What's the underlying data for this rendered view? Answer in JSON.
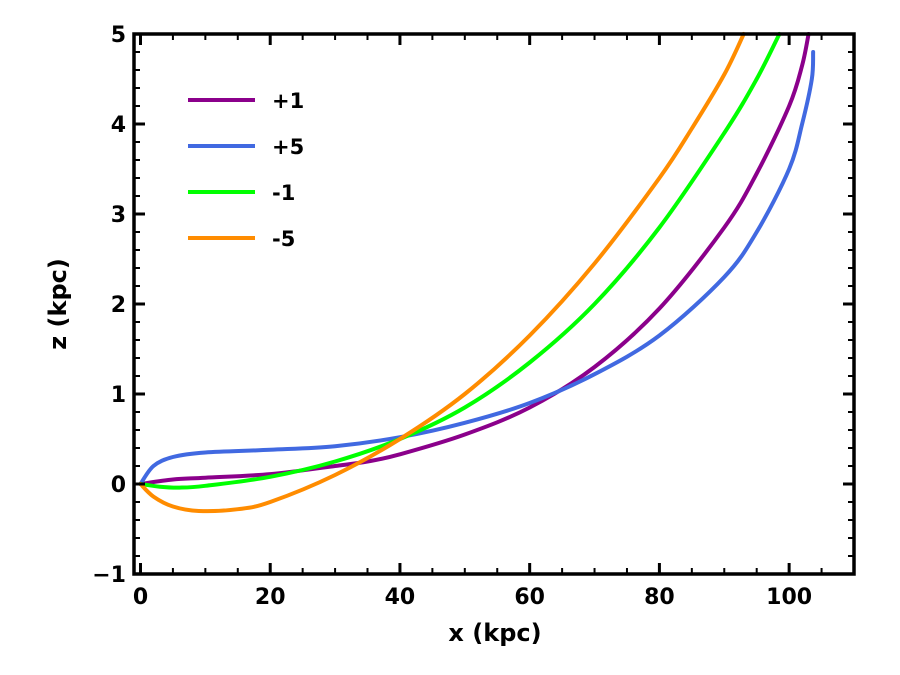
{
  "chart_data": {
    "type": "line",
    "title": "",
    "xlabel": "x (kpc)",
    "ylabel": "z (kpc)",
    "xlim": [
      -1,
      110
    ],
    "ylim": [
      -1,
      5
    ],
    "xticks": [
      0,
      20,
      40,
      60,
      80,
      100
    ],
    "xtick_labels": [
      "0",
      "20",
      "40",
      "60",
      "80",
      "100"
    ],
    "yticks": [
      -1,
      0,
      1,
      2,
      3,
      4,
      5
    ],
    "ytick_labels": [
      "−1",
      "0",
      "1",
      "2",
      "3",
      "4",
      "5"
    ],
    "x_minor_step": 5,
    "y_minor_step": 0.2,
    "grid": false,
    "legend_position": "top-left",
    "series": [
      {
        "name": "+1",
        "color": "#8B008B",
        "x": [
          0,
          5,
          10,
          20,
          30,
          35,
          40,
          50,
          60,
          70,
          80,
          90,
          95,
          100,
          102,
          103
        ],
        "y": [
          0,
          0.05,
          0.07,
          0.11,
          0.2,
          0.25,
          0.33,
          0.55,
          0.85,
          1.3,
          1.95,
          2.85,
          3.45,
          4.2,
          4.65,
          5.0
        ]
      },
      {
        "name": "+5",
        "color": "#4169E1",
        "x": [
          0,
          2,
          5,
          10,
          20,
          30,
          40,
          50,
          60,
          70,
          80,
          90,
          95,
          100,
          102,
          103.5,
          103.7
        ],
        "y": [
          0,
          0.2,
          0.3,
          0.35,
          0.38,
          0.42,
          0.52,
          0.68,
          0.9,
          1.22,
          1.65,
          2.3,
          2.8,
          3.5,
          4.0,
          4.5,
          4.8
        ]
      },
      {
        "name": "-1",
        "color": "#00FF00",
        "x": [
          0,
          3,
          6,
          10,
          20,
          30,
          40,
          50,
          60,
          70,
          80,
          90,
          95,
          98.5
        ],
        "y": [
          0,
          -0.03,
          -0.04,
          -0.02,
          0.08,
          0.25,
          0.5,
          0.85,
          1.35,
          2.0,
          2.85,
          3.9,
          4.5,
          5.0
        ]
      },
      {
        "name": "-5",
        "color": "#FF8C00",
        "x": [
          0,
          2,
          5,
          9,
          15,
          20,
          30,
          40,
          50,
          60,
          70,
          80,
          85,
          90,
          93
        ],
        "y": [
          0,
          -0.14,
          -0.25,
          -0.3,
          -0.28,
          -0.2,
          0.1,
          0.5,
          1.0,
          1.65,
          2.45,
          3.4,
          3.95,
          4.55,
          5.0
        ]
      }
    ]
  }
}
